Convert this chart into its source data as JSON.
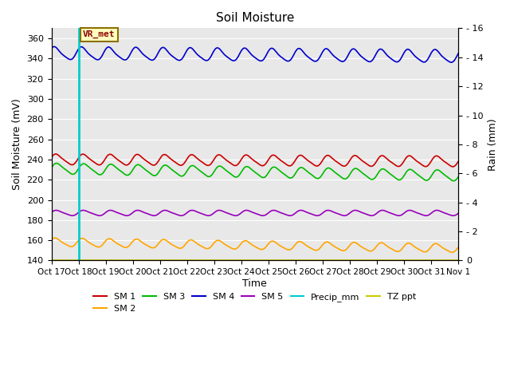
{
  "title": "Soil Moisture",
  "xlabel": "Time",
  "ylabel_left": "Soil Moisture (mV)",
  "ylabel_right": "Rain (mm)",
  "ylim_left": [
    140,
    370
  ],
  "ylim_right": [
    0,
    16
  ],
  "yticks_left": [
    140,
    160,
    180,
    200,
    220,
    240,
    260,
    280,
    300,
    320,
    340,
    360
  ],
  "yticks_right": [
    0,
    2,
    4,
    6,
    8,
    10,
    12,
    14,
    16
  ],
  "xtick_labels": [
    "Oct 17",
    "Oct 18",
    "Oct 19",
    "Oct 20",
    "Oct 21",
    "Oct 22",
    "Oct 23",
    "Oct 24",
    "Oct 25",
    "Oct 26",
    "Oct 27",
    "Oct 28",
    "Oct 29",
    "Oct 30",
    "Oct 31",
    "Nov 1"
  ],
  "annotation_text": "VR_met",
  "annotation_color": "#8B0000",
  "annotation_bg": "#FFFFC0",
  "annotation_border": "#8B7000",
  "sm1_color": "#CC0000",
  "sm2_color": "#FFA500",
  "sm3_color": "#00BB00",
  "sm4_color": "#0000CC",
  "sm5_color": "#9900BB",
  "precip_color": "#00CCCC",
  "tzppt_color": "#CCCC00",
  "background_color": "#E8E8E8",
  "grid_color": "#FFFFFF",
  "sm1_base": 240,
  "sm2_base": 158,
  "sm3_base": 231,
  "sm4_base": 345,
  "sm5_base": 187,
  "tzppt_val": 140,
  "num_days": 15,
  "points_per_day": 24,
  "legend_row1": [
    "SM 1",
    "SM 2",
    "SM 3",
    "SM 4",
    "SM 5",
    "Precip_mm"
  ],
  "legend_row2": [
    "TZ ppt"
  ],
  "legend_colors_row1": [
    "#CC0000",
    "#FFA500",
    "#00BB00",
    "#0000CC",
    "#9900BB",
    "#00CCCC"
  ],
  "legend_colors_row2": [
    "#CCCC00"
  ]
}
